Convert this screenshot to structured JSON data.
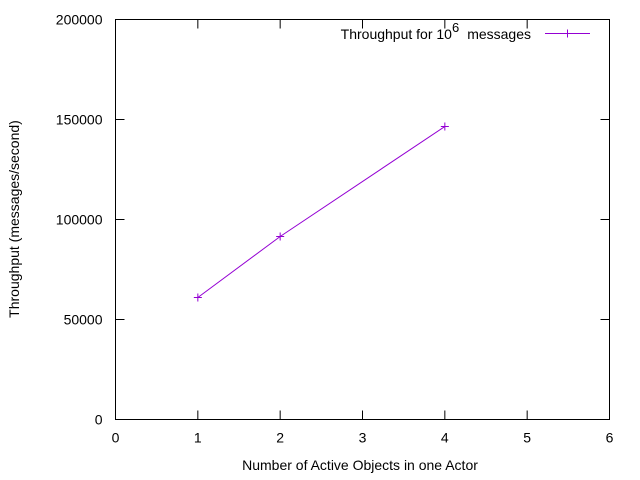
{
  "chart_data": {
    "type": "line",
    "title": "",
    "xlabel": "Number of Active Objects in one Actor",
    "ylabel": "Throughput (messages/second)",
    "xlim": [
      0,
      6
    ],
    "ylim": [
      0,
      200000
    ],
    "x_ticks": [
      "0",
      "1",
      "2",
      "3",
      "4",
      "5",
      "6"
    ],
    "y_ticks": [
      "0",
      "50000",
      "100000",
      "150000",
      "200000"
    ],
    "grid": false,
    "legend_position": "top-right",
    "series": [
      {
        "name_prefix": "Throughput for 10",
        "name_exponent": "6",
        "name_suffix": "messages",
        "color": "#9400d3",
        "marker": "plus",
        "points": [
          {
            "x": 1,
            "y": 61000
          },
          {
            "x": 2,
            "y": 91500
          },
          {
            "x": 4,
            "y": 146500
          }
        ]
      }
    ]
  }
}
